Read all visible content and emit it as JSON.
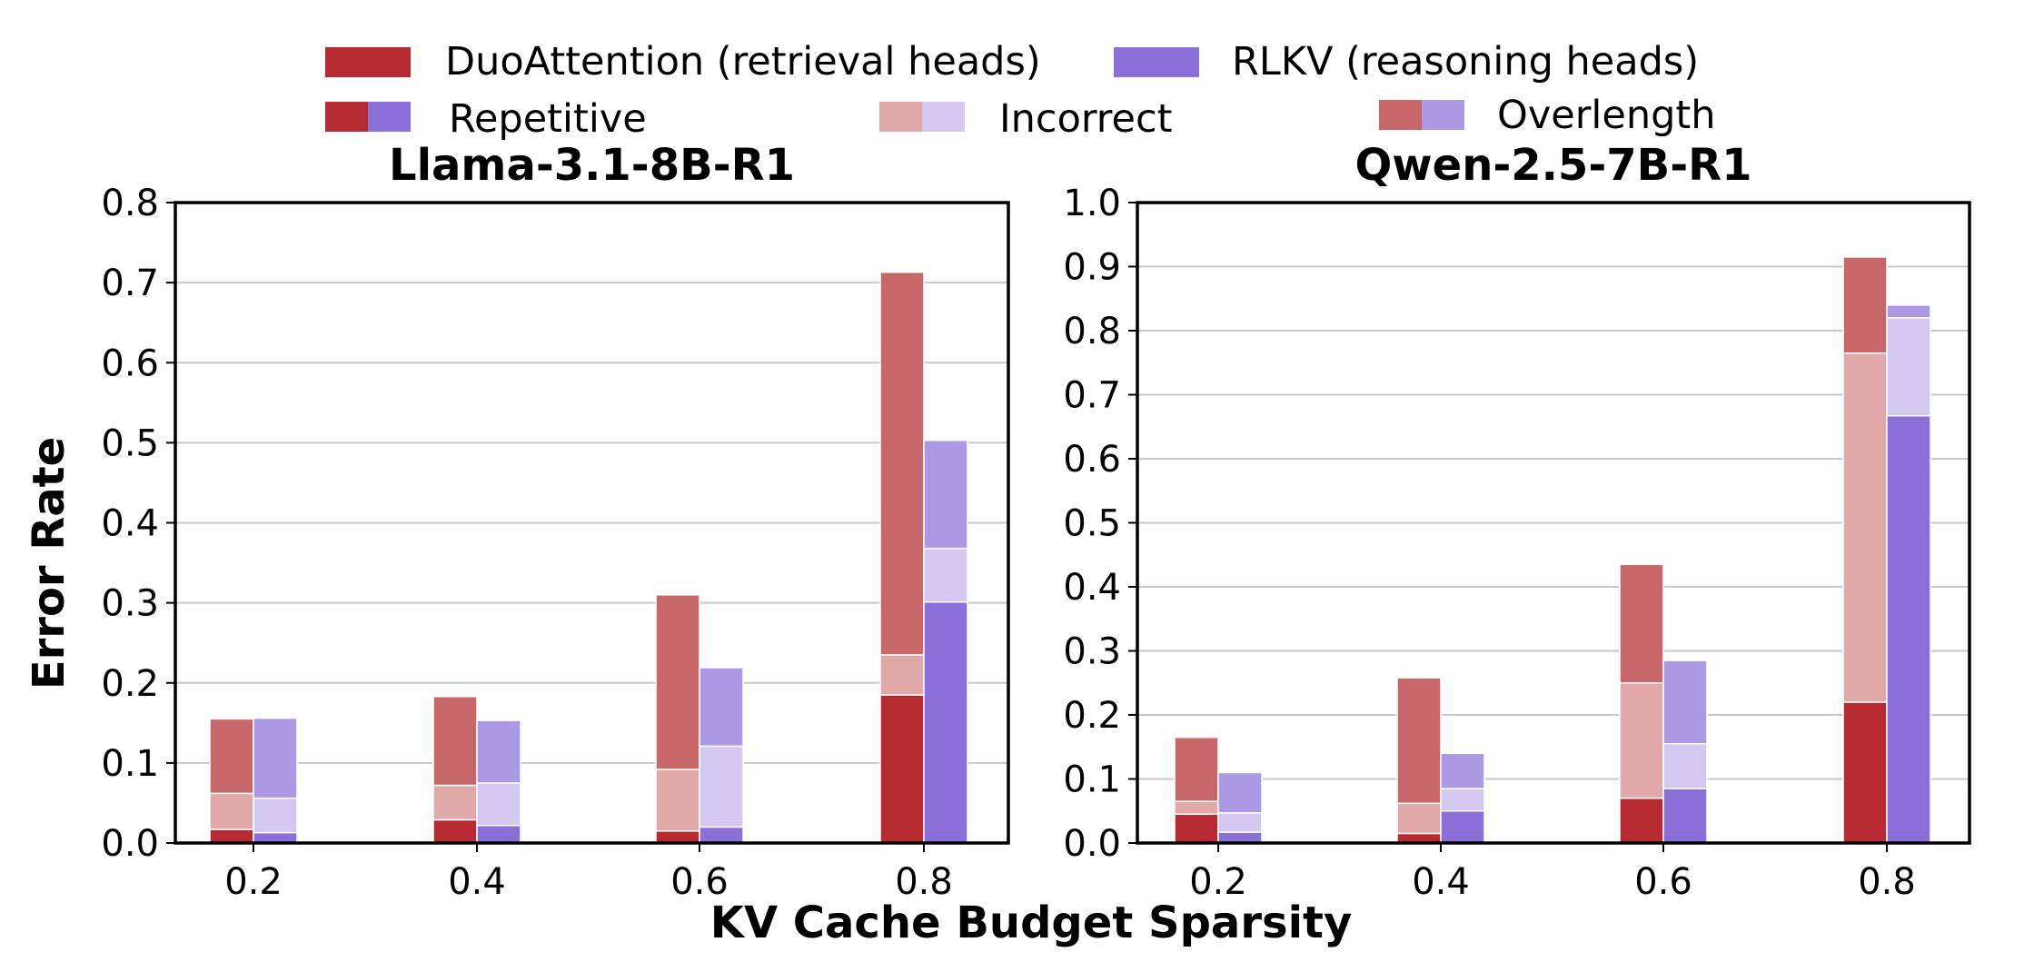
{
  "chart_data": {
    "type": "bar",
    "stacked": true,
    "colors": {
      "duo_repetitive": "#b82a32",
      "duo_incorrect": "#e0a8a8",
      "duo_overlength": "#c8676a",
      "rlkv_repetitive": "#8a6fd8",
      "rlkv_incorrect": "#d2c8f0",
      "rlkv_overlength": "#ab9ae3"
    },
    "legend": {
      "methods": [
        {
          "label": "DuoAttention (retrieval heads)",
          "color": "#b82a32"
        },
        {
          "label": "RLKV (reasoning heads)",
          "color": "#8a6fd8"
        }
      ],
      "error_types": [
        {
          "label": "Repetitive",
          "colors": [
            "#b82a32",
            "#8a6fd8"
          ]
        },
        {
          "label": "Incorrect",
          "colors": [
            "#e0a8a8",
            "#d2c8f0"
          ]
        },
        {
          "label": "Overlength",
          "colors": [
            "#c8676a",
            "#ab9ae3"
          ]
        }
      ]
    },
    "xlabel": "KV Cache Budget Sparsity",
    "ylabel": "Error Rate",
    "panels": [
      {
        "title": "Llama-3.1-8B-R1",
        "categories": [
          "0.2",
          "0.4",
          "0.6",
          "0.8"
        ],
        "ylim": [
          0,
          0.8
        ],
        "yticks": [
          "0.0",
          "0.1",
          "0.2",
          "0.3",
          "0.4",
          "0.5",
          "0.6",
          "0.7",
          "0.8"
        ],
        "series": [
          {
            "name": "DuoAttention",
            "repetitive": [
              0.017,
              0.029,
              0.015,
              0.185
            ],
            "incorrect": [
              0.045,
              0.043,
              0.077,
              0.05
            ],
            "overlength": [
              0.093,
              0.111,
              0.218,
              0.478
            ]
          },
          {
            "name": "RLKV",
            "repetitive": [
              0.013,
              0.022,
              0.02,
              0.301
            ],
            "incorrect": [
              0.043,
              0.053,
              0.101,
              0.067
            ],
            "overlength": [
              0.1,
              0.078,
              0.098,
              0.135
            ]
          }
        ]
      },
      {
        "title": "Qwen-2.5-7B-R1",
        "categories": [
          "0.2",
          "0.4",
          "0.6",
          "0.8"
        ],
        "ylim": [
          0,
          1.0
        ],
        "yticks": [
          "0.0",
          "0.1",
          "0.2",
          "0.3",
          "0.4",
          "0.5",
          "0.6",
          "0.7",
          "0.8",
          "0.9",
          "1.0"
        ],
        "series": [
          {
            "name": "DuoAttention",
            "repetitive": [
              0.045,
              0.015,
              0.07,
              0.22
            ],
            "incorrect": [
              0.02,
              0.047,
              0.18,
              0.545
            ],
            "overlength": [
              0.1,
              0.196,
              0.185,
              0.15
            ]
          },
          {
            "name": "RLKV",
            "repetitive": [
              0.017,
              0.05,
              0.085,
              0.667
            ],
            "incorrect": [
              0.03,
              0.035,
              0.07,
              0.153
            ],
            "overlength": [
              0.063,
              0.055,
              0.13,
              0.02
            ]
          }
        ]
      }
    ]
  }
}
